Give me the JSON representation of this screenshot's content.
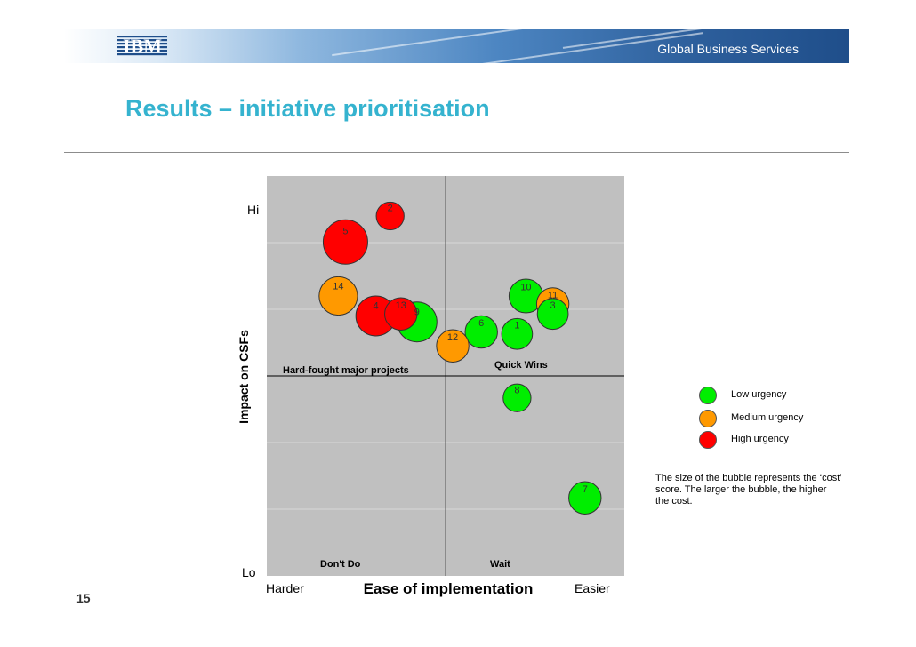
{
  "header": {
    "logo_text": "IBM",
    "division": "Global Business Services"
  },
  "slide": {
    "title": "Results – initiative prioritisation",
    "page_number": "15"
  },
  "chart_data": {
    "type": "scatter",
    "xlabel": "Ease of implementation",
    "ylabel": "Impact on CSFs",
    "x_low_label": "Harder",
    "x_high_label": "Easier",
    "y_high_label": "Hi",
    "y_low_label": "Lo",
    "xlim": [
      0,
      10
    ],
    "ylim": [
      0,
      10
    ],
    "grid": true,
    "quadrants": {
      "top_left": "Hard-fought major projects",
      "top_right": "Quick Wins",
      "bottom_left": "Don't Do",
      "bottom_right": "Wait"
    },
    "points": [
      {
        "label": "2",
        "x": 3.45,
        "y": 9.0,
        "size": 0.45,
        "urgency": "high"
      },
      {
        "label": "5",
        "x": 2.2,
        "y": 8.35,
        "size": 1.0,
        "urgency": "high"
      },
      {
        "label": "14",
        "x": 2.0,
        "y": 7.0,
        "size": 0.8,
        "urgency": "medium"
      },
      {
        "label": "4",
        "x": 3.05,
        "y": 6.5,
        "size": 0.85,
        "urgency": "high"
      },
      {
        "label": "13",
        "x": 3.75,
        "y": 6.55,
        "size": 0.6,
        "urgency": "high"
      },
      {
        "label": "9",
        "x": 4.2,
        "y": 6.35,
        "size": 0.85,
        "urgency": "low"
      },
      {
        "label": "10",
        "x": 7.25,
        "y": 7.0,
        "size": 0.65,
        "urgency": "low"
      },
      {
        "label": "11",
        "x": 8.0,
        "y": 6.8,
        "size": 0.6,
        "urgency": "medium"
      },
      {
        "label": "3",
        "x": 8.0,
        "y": 6.55,
        "size": 0.55,
        "urgency": "low"
      },
      {
        "label": "6",
        "x": 6.0,
        "y": 6.1,
        "size": 0.6,
        "urgency": "low"
      },
      {
        "label": "1",
        "x": 7.0,
        "y": 6.05,
        "size": 0.55,
        "urgency": "low"
      },
      {
        "label": "12",
        "x": 5.2,
        "y": 5.75,
        "size": 0.6,
        "urgency": "medium"
      },
      {
        "label": "8",
        "x": 7.0,
        "y": 4.45,
        "size": 0.45,
        "urgency": "low"
      },
      {
        "label": "7",
        "x": 8.9,
        "y": 1.95,
        "size": 0.6,
        "urgency": "low"
      }
    ],
    "urgency_colors": {
      "low": "#00ee00",
      "medium": "#ff9900",
      "high": "#ff0000"
    },
    "legend": [
      {
        "key": "low",
        "label": "Low urgency"
      },
      {
        "key": "medium",
        "label": "Medium urgency"
      },
      {
        "key": "high",
        "label": "High urgency"
      }
    ],
    "legend_position": "right",
    "note": "The size of the bubble represents the ‘cost’ score. The larger the bubble, the higher the cost."
  }
}
